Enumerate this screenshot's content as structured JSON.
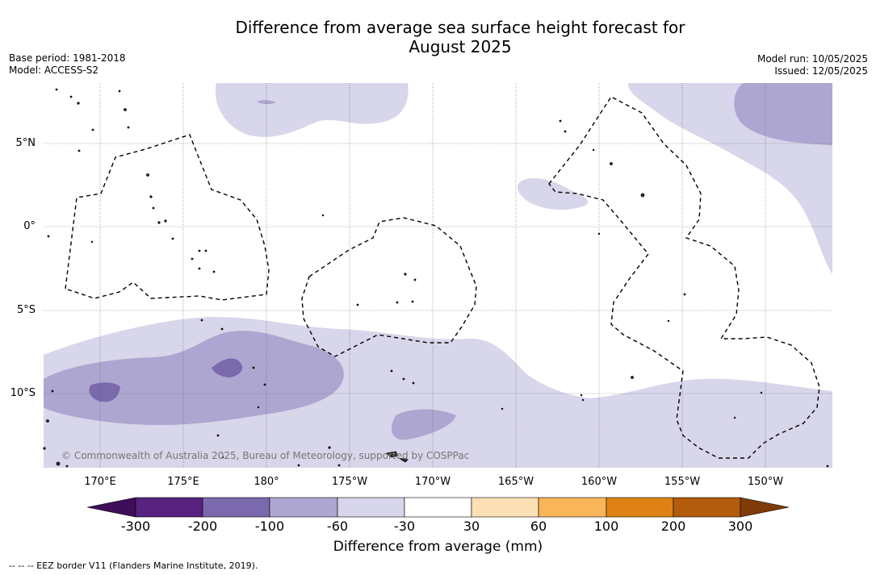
{
  "title": {
    "line1": "Difference from average sea surface height forecast for",
    "line2": "August 2025"
  },
  "meta_left": {
    "base_period": "Base period: 1981-2018",
    "model": "Model: ACCESS-S2"
  },
  "meta_right": {
    "model_run": "Model run: 10/05/2025",
    "issued": "Issued: 12/05/2025"
  },
  "map": {
    "latitude_labels": [
      "5°N",
      "0°",
      "5°S",
      "10°S"
    ],
    "longitude_labels": [
      "170°E",
      "175°E",
      "180°",
      "175°W",
      "170°W",
      "165°W",
      "160°W",
      "155°W",
      "150°W"
    ],
    "copyright": "© Commonwealth of Australia 2025, Bureau of Meteorology, supported by COSPPac",
    "gridlines": true
  },
  "colorbar": {
    "tick_labels": [
      "-300",
      "-200",
      "-100",
      "-60",
      "-30",
      "30",
      "60",
      "100",
      "200",
      "300"
    ],
    "colors": [
      "#3f0d59",
      "#57237f",
      "#7a6aad",
      "#ada6d0",
      "#d7d6ea",
      "#ffffff",
      "#fde0b6",
      "#f9b55a",
      "#df8216",
      "#b35c0d",
      "#7f3b08"
    ],
    "label": "Difference from average (mm)"
  },
  "footnote": "--  --  -- EEZ border V11 (Flanders Marine Institute, 2019)."
}
